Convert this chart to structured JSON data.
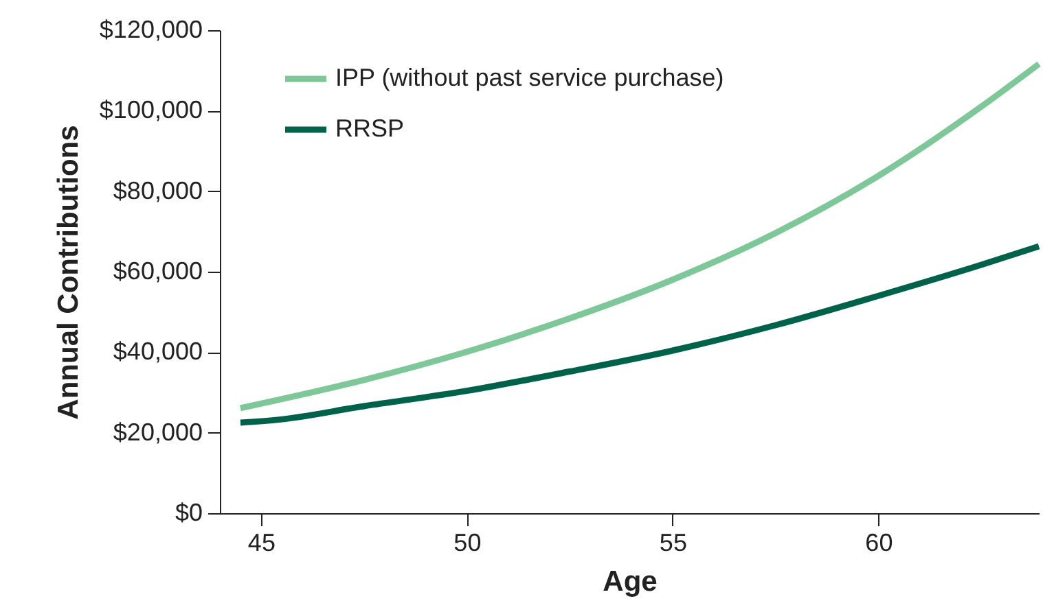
{
  "chart_data": {
    "type": "line",
    "xlabel": "Age",
    "ylabel": "Annual Contributions",
    "xlim": [
      44,
      63.9
    ],
    "xticks": [
      45,
      50,
      55,
      60
    ],
    "ylim": [
      0,
      120000
    ],
    "yticks": [
      {
        "value": 0,
        "label": "$0"
      },
      {
        "value": 20000,
        "label": "$20,000"
      },
      {
        "value": 40000,
        "label": "$40,000"
      },
      {
        "value": 60000,
        "label": "$60,000"
      },
      {
        "value": 80000,
        "label": "$80,000"
      },
      {
        "value": 100000,
        "label": "$100,000"
      },
      {
        "value": 120000,
        "label": "$120,000"
      }
    ],
    "grid": false,
    "legend": "top left",
    "line_style": "solid",
    "marker": "none",
    "series": [
      {
        "name": "IPP (without past service purchase)",
        "color": "#7dc799",
        "x": [
          44.5,
          47.5,
          50,
          52.5,
          55,
          57.5,
          60,
          62.5,
          63.9
        ],
        "values": [
          26100,
          33100,
          40100,
          48400,
          58000,
          69600,
          83800,
          101000,
          111600
        ]
      },
      {
        "name": "RRSP",
        "color": "#00624a",
        "x": [
          44.5,
          45.4,
          47.5,
          50,
          52.5,
          55,
          57.5,
          60,
          62.5,
          63.9
        ],
        "values": [
          22500,
          23200,
          26600,
          30400,
          35200,
          40400,
          46700,
          54000,
          61700,
          66300
        ]
      }
    ]
  }
}
